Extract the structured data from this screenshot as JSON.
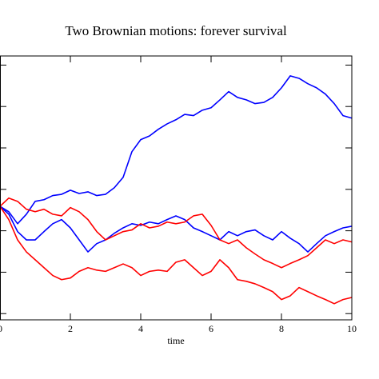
{
  "chart_data": {
    "type": "line",
    "title": "Two Brownian motions: forever survival",
    "xlabel": "time",
    "x": [
      0,
      0.25,
      0.5,
      0.75,
      1,
      1.25,
      1.5,
      1.75,
      2,
      2.25,
      2.5,
      2.75,
      3,
      3.25,
      3.5,
      3.75,
      4,
      4.25,
      4.5,
      4.75,
      5,
      5.25,
      5.5,
      5.75,
      6,
      6.25,
      6.5,
      6.75,
      7,
      7.25,
      7.5,
      7.75,
      8,
      8.25,
      8.5,
      8.75,
      9,
      9.25,
      9.5,
      9.75,
      10
    ],
    "series": [
      {
        "color": "#0000ff",
        "values": [
          -0.41,
          -0.54,
          -0.83,
          -0.6,
          -0.29,
          -0.25,
          -0.15,
          -0.12,
          -0.02,
          -0.1,
          -0.06,
          -0.15,
          -0.12,
          0.04,
          0.29,
          0.91,
          1.2,
          1.29,
          1.45,
          1.58,
          1.68,
          1.81,
          1.78,
          1.91,
          1.97,
          2.16,
          2.36,
          2.22,
          2.16,
          2.07,
          2.1,
          2.22,
          2.45,
          2.74,
          2.68,
          2.55,
          2.45,
          2.3,
          2.07,
          1.78,
          1.72
        ]
      },
      {
        "color": "#0000ff",
        "values": [
          -0.41,
          -0.6,
          -1.02,
          -1.22,
          -1.22,
          -1.02,
          -0.83,
          -0.73,
          -0.93,
          -1.22,
          -1.51,
          -1.31,
          -1.22,
          -1.06,
          -0.93,
          -0.83,
          -0.87,
          -0.79,
          -0.83,
          -0.73,
          -0.64,
          -0.73,
          -0.93,
          -1.02,
          -1.12,
          -1.22,
          -1.02,
          -1.12,
          -1.02,
          -0.98,
          -1.12,
          -1.22,
          -1.02,
          -1.18,
          -1.31,
          -1.51,
          -1.31,
          -1.12,
          -1.02,
          -0.93,
          -0.89
        ]
      },
      {
        "color": "#ff0000",
        "values": [
          -0.41,
          -0.21,
          -0.29,
          -0.48,
          -0.54,
          -0.48,
          -0.6,
          -0.64,
          -0.44,
          -0.54,
          -0.73,
          -1.02,
          -1.22,
          -1.12,
          -1.02,
          -0.98,
          -0.83,
          -0.93,
          -0.89,
          -0.79,
          -0.83,
          -0.79,
          -0.64,
          -0.6,
          -0.87,
          -1.22,
          -1.31,
          -1.22,
          -1.41,
          -1.56,
          -1.7,
          -1.79,
          -1.89,
          -1.79,
          -1.7,
          -1.6,
          -1.41,
          -1.22,
          -1.31,
          -1.22,
          -1.27
        ]
      },
      {
        "color": "#ff0000",
        "values": [
          -0.41,
          -0.73,
          -1.22,
          -1.51,
          -1.7,
          -1.89,
          -2.08,
          -2.18,
          -2.14,
          -1.98,
          -1.89,
          -1.95,
          -1.98,
          -1.89,
          -1.8,
          -1.89,
          -2.08,
          -1.98,
          -1.95,
          -1.98,
          -1.76,
          -1.7,
          -1.89,
          -2.08,
          -1.98,
          -1.7,
          -1.89,
          -2.18,
          -2.22,
          -2.28,
          -2.37,
          -2.47,
          -2.66,
          -2.57,
          -2.37,
          -2.47,
          -2.57,
          -2.66,
          -2.76,
          -2.66,
          -2.61
        ]
      }
    ],
    "xlim": [
      0,
      10
    ],
    "xticks": [
      0,
      2,
      4,
      6,
      8,
      10
    ],
    "ylim": [
      -3.15,
      3.22
    ],
    "yticks": [
      -3,
      -2,
      -1,
      0,
      1,
      2,
      3
    ]
  }
}
